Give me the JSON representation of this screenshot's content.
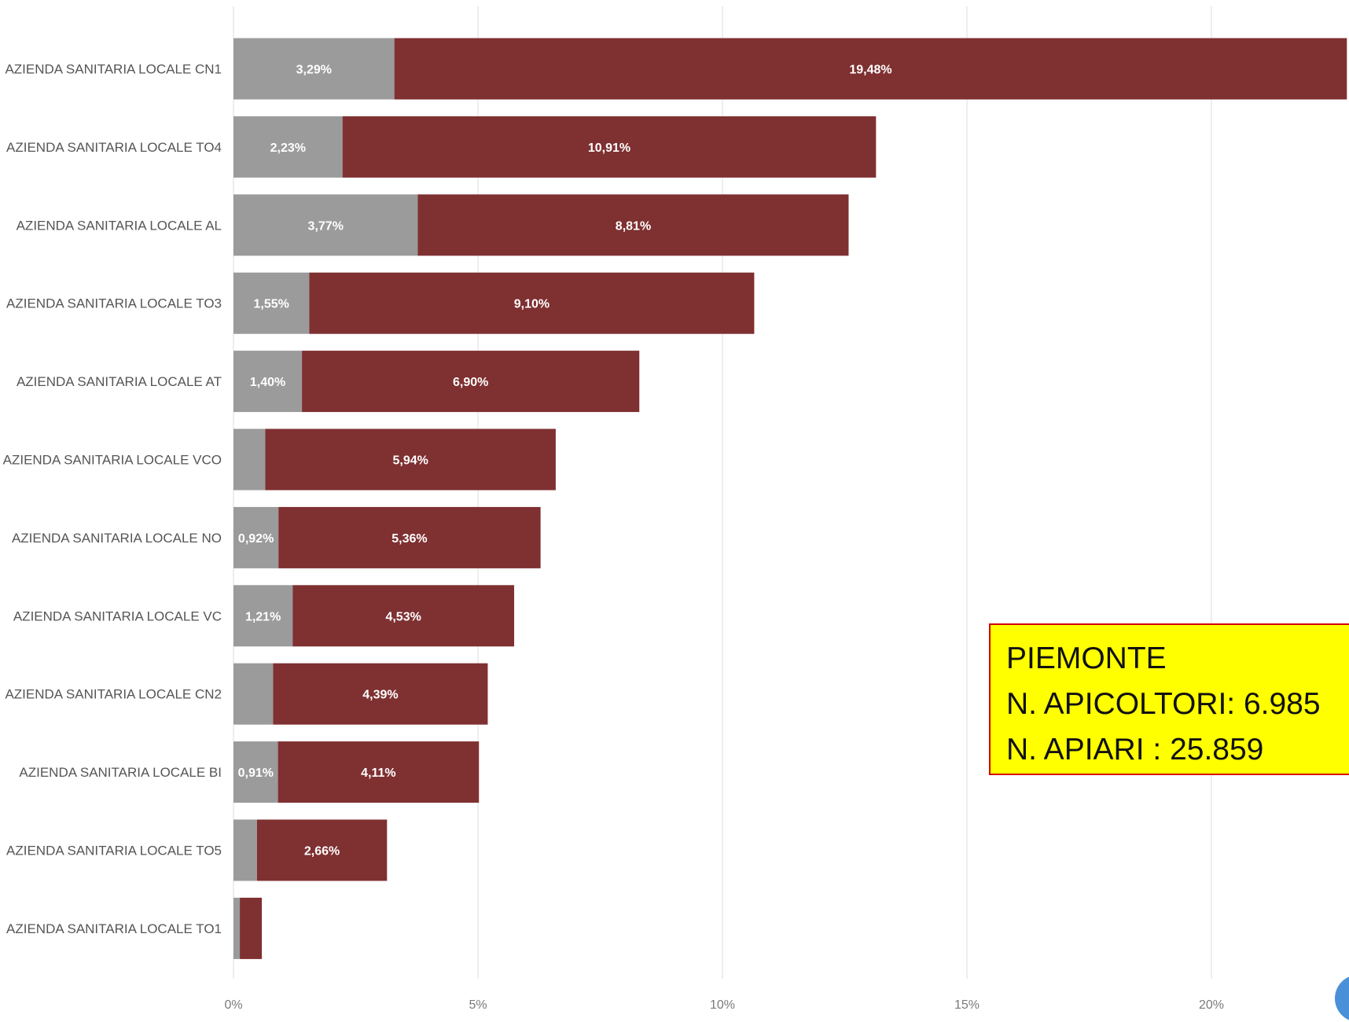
{
  "chart_data": {
    "type": "bar",
    "orientation": "horizontal",
    "stacked": true,
    "categories": [
      "AZIENDA SANITARIA LOCALE CN1",
      "AZIENDA SANITARIA LOCALE TO4",
      "AZIENDA SANITARIA LOCALE AL",
      "AZIENDA SANITARIA LOCALE TO3",
      "AZIENDA SANITARIA LOCALE AT",
      "AZIENDA SANITARIA LOCALE VCO",
      "AZIENDA SANITARIA LOCALE NO",
      "AZIENDA SANITARIA LOCALE VC",
      "AZIENDA SANITARIA LOCALE CN2",
      "AZIENDA SANITARIA LOCALE BI",
      "AZIENDA SANITARIA LOCALE TO5",
      "AZIENDA SANITARIA LOCALE TO1"
    ],
    "series": [
      {
        "color": "#9b9b9b",
        "values": [
          3.29,
          2.23,
          3.77,
          1.55,
          1.4,
          0.65,
          0.92,
          1.21,
          0.81,
          0.91,
          0.48,
          0.13
        ],
        "labels": [
          "3,29%",
          "2,23%",
          "3,77%",
          "1,55%",
          "1,40%",
          "",
          "0,92%",
          "1,21%",
          "",
          "0,91%",
          "",
          ""
        ]
      },
      {
        "color": "#7f3031",
        "values": [
          19.48,
          10.91,
          8.81,
          9.1,
          6.9,
          5.94,
          5.36,
          4.53,
          4.39,
          4.11,
          2.66,
          0.45
        ],
        "labels": [
          "19,48%",
          "10,91%",
          "8,81%",
          "9,10%",
          "6,90%",
          "5,94%",
          "5,36%",
          "4,53%",
          "4,39%",
          "4,11%",
          "2,66%",
          ""
        ]
      }
    ],
    "xlim": [
      0,
      22.8
    ],
    "xticks": [
      0,
      5,
      10,
      15,
      20
    ],
    "xtick_labels": [
      "0%",
      "5%",
      "10%",
      "15%",
      "20%"
    ],
    "grid": true,
    "title": "",
    "xlabel": "",
    "ylabel": ""
  },
  "info_box": {
    "line1": "PIEMONTE",
    "line2": "N. APICOLTORI: 6.985",
    "line3": "N. APIARI : 25.859"
  }
}
